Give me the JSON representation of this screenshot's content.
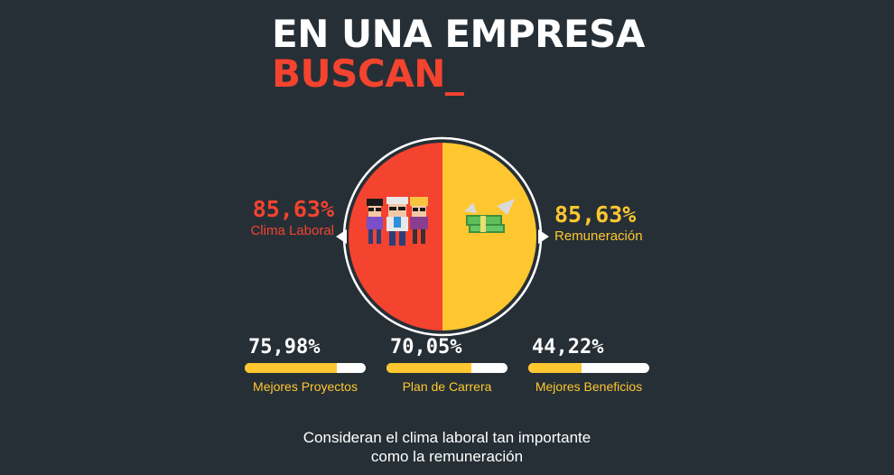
{
  "header": {
    "title": "EN UNA EMPRESA",
    "subtitle": "BUSCAN_"
  },
  "highlight": {
    "left": {
      "percent": "85,63%",
      "label": "Clima Laboral",
      "value": 85.63,
      "icon": "people-icon"
    },
    "right": {
      "percent": "85,63%",
      "label": "Remuneración",
      "value": 85.63,
      "icon": "flying-money-icon"
    }
  },
  "metrics": [
    {
      "percent": "75,98%",
      "label": "Mejores Proyectos",
      "value": 75.98
    },
    {
      "percent": "70,05%",
      "label": "Plan de Carrera",
      "value": 70.05
    },
    {
      "percent": "44,22%",
      "label": "Mejores Beneficios",
      "value": 44.22
    }
  ],
  "caption": {
    "line1": "Consideran el clima laboral tan importante",
    "line2": "como la remuneración"
  },
  "colors": {
    "background": "#262f36",
    "red": "#f4432f",
    "yellow": "#fec72f",
    "white": "#ffffff"
  }
}
